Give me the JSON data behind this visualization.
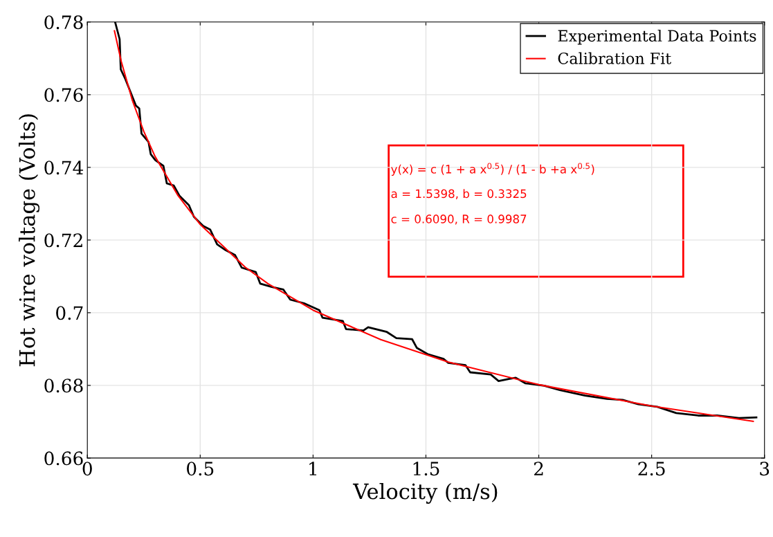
{
  "chart_data": {
    "type": "line",
    "xlabel": "Velocity (m/s)",
    "ylabel": "Hot wire voltage (Volts)",
    "xlim": [
      0,
      3
    ],
    "xticks": [
      0,
      0.5,
      1,
      1.5,
      2,
      2.5,
      3
    ],
    "ylim": [
      0.66,
      0.78
    ],
    "yticks": [
      0.66,
      0.68,
      0.7,
      0.72,
      0.74,
      0.76,
      0.78
    ],
    "grid": true,
    "legend": "top right",
    "series": [
      {
        "name": "Experimental Data Points",
        "color": "#000000",
        "x": [
          0.123,
          0.143,
          0.148,
          0.169,
          0.215,
          0.23,
          0.24,
          0.271,
          0.281,
          0.301,
          0.337,
          0.352,
          0.383,
          0.409,
          0.45,
          0.472,
          0.513,
          0.544,
          0.575,
          0.613,
          0.654,
          0.684,
          0.746,
          0.766,
          0.817,
          0.868,
          0.899,
          0.96,
          1.028,
          1.042,
          1.132,
          1.146,
          1.223,
          1.244,
          1.327,
          1.369,
          1.439,
          1.46,
          1.508,
          1.578,
          1.599,
          1.675,
          1.696,
          1.787,
          1.822,
          1.871,
          1.898,
          1.94,
          2.024,
          2.093,
          2.205,
          2.302,
          2.372,
          2.441,
          2.525,
          2.609,
          2.706,
          2.79,
          2.887,
          2.964
        ],
        "values": [
          0.78,
          0.7753,
          0.767,
          0.7642,
          0.757,
          0.7562,
          0.7493,
          0.747,
          0.7436,
          0.742,
          0.7404,
          0.7356,
          0.735,
          0.7321,
          0.7296,
          0.7264,
          0.7239,
          0.7229,
          0.7188,
          0.7172,
          0.7159,
          0.7124,
          0.7112,
          0.708,
          0.7071,
          0.7064,
          0.7036,
          0.7026,
          0.7007,
          0.6986,
          0.6977,
          0.6955,
          0.6951,
          0.696,
          0.6947,
          0.693,
          0.6927,
          0.6903,
          0.6886,
          0.6873,
          0.6862,
          0.6856,
          0.6836,
          0.683,
          0.6812,
          0.6818,
          0.6821,
          0.6806,
          0.6799,
          0.6787,
          0.6772,
          0.6763,
          0.676,
          0.6748,
          0.6741,
          0.6724,
          0.6717,
          0.6717,
          0.671,
          0.6712
        ]
      },
      {
        "name": "Calibration Fit",
        "color": "#ff0000",
        "x": [
          0.12,
          0.15,
          0.2,
          0.25,
          0.3,
          0.4,
          0.5,
          0.7,
          0.8,
          1.0,
          1.3,
          1.6,
          2.0,
          2.5,
          2.95
        ],
        "values": [
          0.7776,
          0.7692,
          0.7583,
          0.7499,
          0.743,
          0.7324,
          0.7243,
          0.7125,
          0.708,
          0.7007,
          0.6926,
          0.6864,
          0.6802,
          0.6743,
          0.6701
        ]
      }
    ],
    "annotations": [
      "y(x) = c (1 + a x$^{0.5}$) / (1 - b +a x$^{0.5}$)",
      "a = 1.5398, b = 0.3325",
      "c = 0.6090, R = 0.9987"
    ]
  }
}
